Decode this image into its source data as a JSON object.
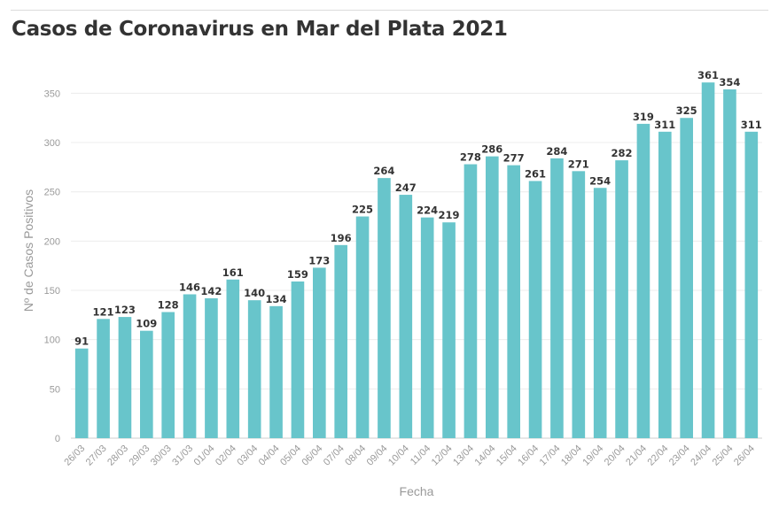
{
  "title": "Casos de Coronavirus en Mar del Plata 2021",
  "chart_data": {
    "type": "bar",
    "title": "Casos de Coronavirus en Mar del Plata 2021",
    "xlabel": "Fecha",
    "ylabel": "Nº de Casos Positivos",
    "ylim": [
      0,
      380
    ],
    "yticks": [
      0,
      50,
      100,
      150,
      200,
      250,
      300,
      350
    ],
    "grid": true,
    "bar_color": "#68c5cb",
    "categories": [
      "26/03",
      "27/03",
      "28/03",
      "29/03",
      "30/03",
      "31/03",
      "01/04",
      "02/04",
      "03/04",
      "04/04",
      "05/04",
      "06/04",
      "07/04",
      "08/04",
      "09/04",
      "10/04",
      "11/04",
      "12/04",
      "13/04",
      "14/04",
      "15/04",
      "16/04",
      "17/04",
      "18/04",
      "19/04",
      "20/04",
      "21/04",
      "22/04",
      "23/04",
      "24/04",
      "25/04",
      "26/04"
    ],
    "values": [
      91,
      121,
      123,
      109,
      128,
      146,
      142,
      161,
      140,
      134,
      159,
      173,
      196,
      225,
      264,
      247,
      224,
      219,
      278,
      286,
      277,
      261,
      284,
      271,
      254,
      282,
      319,
      311,
      325,
      361,
      354,
      311
    ]
  }
}
